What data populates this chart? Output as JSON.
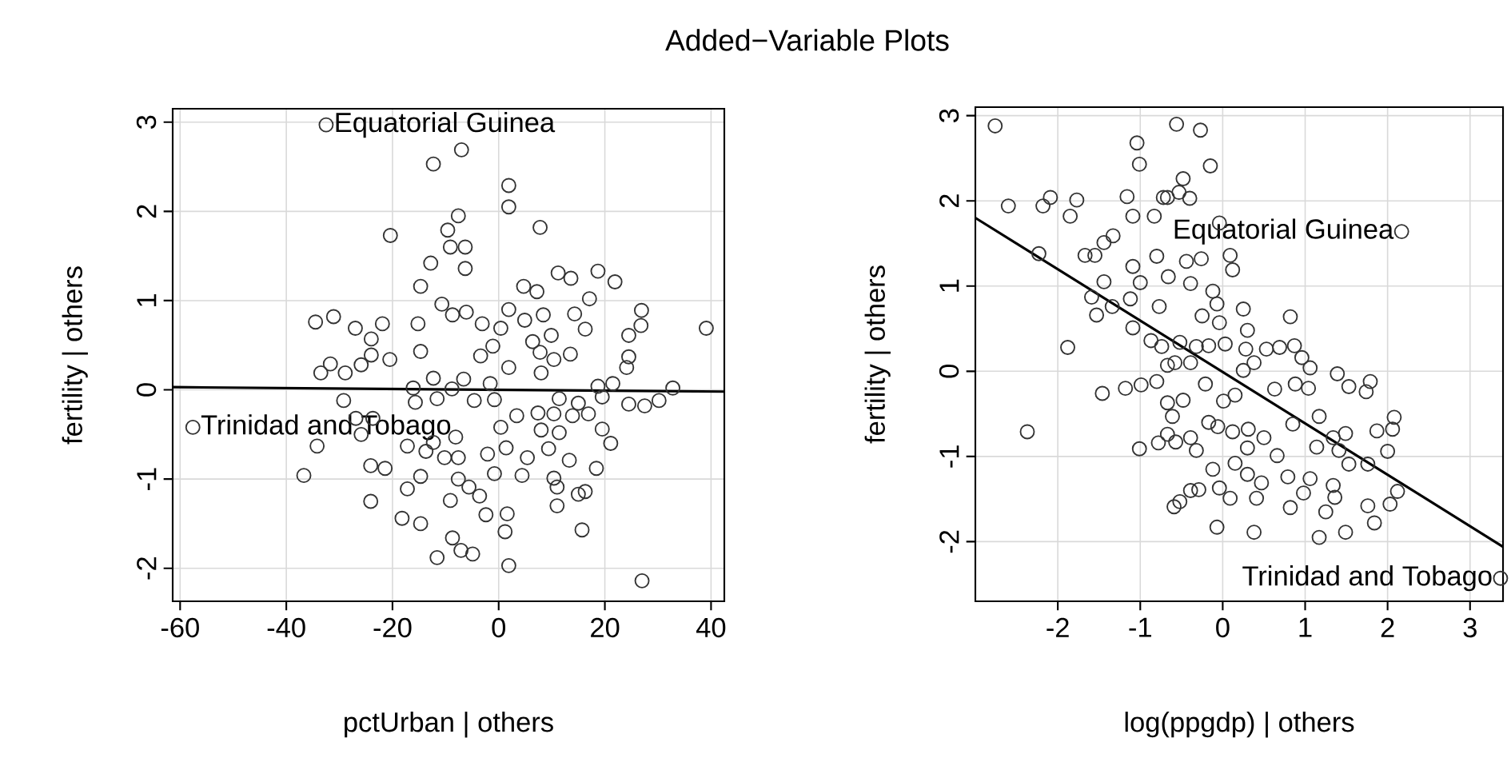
{
  "chart_data": [
    {
      "type": "scatter",
      "title": "Added−Variable Plots",
      "xlabel": "pctUrban | others",
      "ylabel": "fertility  | others",
      "xlim": [
        -61.4,
        42.5
      ],
      "ylim": [
        -2.37,
        3.15
      ],
      "xticks": [
        -60,
        -40,
        -20,
        0,
        20,
        40
      ],
      "yticks": [
        -2,
        -1,
        0,
        1,
        2,
        3
      ],
      "grid": true,
      "annotations": [
        {
          "text": "Equatorial Guinea",
          "x": -32.5,
          "y": 2.97
        },
        {
          "text": "Trinidad and Tobago",
          "x": -57.6,
          "y": -0.42
        }
      ],
      "series": [
        {
          "marker": "circle",
          "color": "#333333",
          "x": [
            -32.5,
            -7.0,
            -12.3,
            1.9,
            1.9,
            -7.6,
            -9.6,
            7.8,
            -20.4,
            -6.3,
            -9.1,
            -12.8,
            -6.3,
            11.2,
            13.6,
            18.7,
            21.9,
            -14.7,
            4.7,
            7.2,
            17.1,
            -10.7,
            26.9,
            -34.5,
            -31.1,
            -27.0,
            -21.9,
            -15.2,
            -8.7,
            -6.1,
            -3.1,
            0.4,
            1.9,
            4.9,
            8.4,
            14.3,
            16.3,
            26.8,
            39.1,
            -24.0,
            24.5,
            9.9,
            6.4,
            -24.0,
            -20.5,
            -14.7,
            -31.7,
            -25.9,
            -33.5,
            -28.9,
            -3.4,
            -1.1,
            1.9,
            7.8,
            10.4,
            13.5,
            24.5,
            24.1,
            -12.3,
            -6.6,
            -16.1,
            -8.8,
            -1.6,
            8.0,
            21.5,
            32.8,
            18.7,
            -29.2,
            -15.7,
            -11.6,
            -4.6,
            -0.8,
            11.4,
            15.0,
            19.5,
            24.5,
            27.5,
            30.2,
            -57.6,
            -26.9,
            -25.9,
            -23.7,
            -34.2,
            3.4,
            7.4,
            10.4,
            13.9,
            16.9,
            0.4,
            8.0,
            11.4,
            19.5,
            21.1,
            -17.2,
            -12.3,
            -8.1,
            -13.7,
            -10.2,
            -7.6,
            -2.1,
            1.4,
            5.4,
            9.4,
            13.3,
            -36.7,
            -24.1,
            -21.4,
            -14.7,
            -0.8,
            4.4,
            10.4,
            18.4,
            -17.2,
            -7.6,
            -5.6,
            -9.1,
            -3.6,
            11.0,
            15.0,
            16.3,
            11.0,
            -24.1,
            -18.2,
            -14.7,
            -2.4,
            1.6,
            15.7,
            -8.7,
            1.2,
            -7.1,
            -4.9,
            -11.6,
            1.9,
            27.0
          ],
          "values": [
            2.97,
            2.69,
            2.53,
            2.29,
            2.05,
            1.95,
            1.79,
            1.82,
            1.73,
            1.6,
            1.6,
            1.42,
            1.36,
            1.31,
            1.25,
            1.33,
            1.21,
            1.16,
            1.16,
            1.1,
            1.02,
            0.96,
            0.89,
            0.76,
            0.82,
            0.69,
            0.74,
            0.74,
            0.84,
            0.87,
            0.74,
            0.69,
            0.9,
            0.78,
            0.84,
            0.85,
            0.68,
            0.72,
            0.69,
            0.57,
            0.61,
            0.61,
            0.54,
            0.39,
            0.34,
            0.43,
            0.29,
            0.28,
            0.19,
            0.19,
            0.38,
            0.49,
            0.25,
            0.42,
            0.34,
            0.4,
            0.37,
            0.25,
            0.13,
            0.12,
            0.02,
            0.01,
            0.07,
            0.19,
            0.07,
            0.02,
            0.04,
            -0.12,
            -0.14,
            -0.1,
            -0.12,
            -0.11,
            -0.1,
            -0.15,
            -0.08,
            -0.16,
            -0.18,
            -0.12,
            -0.42,
            -0.32,
            -0.5,
            -0.32,
            -0.63,
            -0.29,
            -0.26,
            -0.27,
            -0.29,
            -0.27,
            -0.42,
            -0.45,
            -0.48,
            -0.44,
            -0.6,
            -0.63,
            -0.59,
            -0.53,
            -0.69,
            -0.76,
            -0.76,
            -0.72,
            -0.65,
            -0.76,
            -0.66,
            -0.79,
            -0.96,
            -0.85,
            -0.88,
            -0.97,
            -0.94,
            -0.96,
            -0.99,
            -0.88,
            -1.11,
            -1.0,
            -1.09,
            -1.24,
            -1.19,
            -1.09,
            -1.17,
            -1.14,
            -1.3,
            -1.25,
            -1.44,
            -1.5,
            -1.4,
            -1.39,
            -1.57,
            -1.66,
            -1.59,
            -1.8,
            -1.84,
            -1.88,
            -1.97,
            -2.14
          ]
        },
        {
          "type": "line",
          "marker": "none",
          "color": "#000000",
          "line_style": "solid",
          "x": [
            -61.4,
            42.5
          ],
          "values": [
            0.03,
            -0.02
          ]
        }
      ]
    },
    {
      "type": "scatter",
      "xlabel": "log(ppgdp) | others",
      "ylabel": "fertility  | others",
      "xlim": [
        -3.0,
        3.4
      ],
      "ylim": [
        -2.7,
        3.1
      ],
      "xticks": [
        -2,
        -1,
        0,
        1,
        2,
        3
      ],
      "yticks": [
        -2,
        -1,
        0,
        1,
        2,
        3
      ],
      "grid": true,
      "annotations": [
        {
          "text": "Equatorial Guinea",
          "x": 2.17,
          "y": 1.64
        },
        {
          "text": "Trinidad and Tobago",
          "x": 3.37,
          "y": -2.43
        }
      ],
      "series": [
        {
          "marker": "circle",
          "color": "#333333",
          "x": [
            -2.76,
            -0.56,
            -0.27,
            -1.04,
            -1.01,
            -0.15,
            -0.48,
            -0.53,
            -0.4,
            -0.72,
            -0.67,
            -1.16,
            -2.6,
            -2.18,
            -2.09,
            -1.77,
            -1.85,
            -1.09,
            -0.83,
            -0.04,
            2.17,
            -1.33,
            -1.44,
            -2.23,
            -1.67,
            -1.55,
            -0.8,
            -0.44,
            -0.26,
            0.09,
            0.12,
            -1.09,
            -0.66,
            -1.0,
            -0.39,
            -1.44,
            -1.59,
            -1.12,
            -0.77,
            -0.12,
            -0.07,
            -1.53,
            -1.34,
            -1.09,
            -0.25,
            0.25,
            0.82,
            0.3,
            -0.04,
            -1.88,
            -0.87,
            -0.74,
            -0.52,
            -0.32,
            -0.17,
            0.03,
            0.28,
            0.53,
            0.69,
            0.87,
            0.96,
            1.06,
            1.39,
            1.53,
            1.79,
            1.74,
            -0.67,
            -0.58,
            -0.39,
            -0.21,
            0.01,
            0.15,
            0.25,
            0.38,
            0.63,
            0.88,
            1.04,
            1.17,
            -1.46,
            -1.18,
            -0.99,
            -0.8,
            -0.67,
            -0.48,
            -0.61,
            -2.37,
            -1.01,
            -0.78,
            -0.67,
            -0.57,
            -0.39,
            -0.32,
            -0.17,
            -0.06,
            0.12,
            0.31,
            0.5,
            0.3,
            0.66,
            0.85,
            1.14,
            1.34,
            1.49,
            1.41,
            1.53,
            1.76,
            1.87,
            2.08,
            2.06,
            2.0,
            0.15,
            0.3,
            0.47,
            -0.12,
            -0.04,
            -0.29,
            -0.39,
            -0.52,
            -0.59,
            0.09,
            0.41,
            0.79,
            1.06,
            0.82,
            0.98,
            1.25,
            1.34,
            1.36,
            1.76,
            1.84,
            2.03,
            2.12,
            -0.07,
            0.38,
            1.17,
            1.49,
            3.37
          ],
          "values": [
            2.88,
            2.9,
            2.83,
            2.68,
            2.43,
            2.41,
            2.26,
            2.1,
            2.03,
            2.04,
            2.04,
            2.05,
            1.94,
            1.94,
            2.04,
            2.01,
            1.82,
            1.82,
            1.82,
            1.74,
            1.64,
            1.59,
            1.51,
            1.38,
            1.36,
            1.36,
            1.35,
            1.29,
            1.32,
            1.36,
            1.19,
            1.23,
            1.11,
            1.04,
            1.03,
            1.05,
            0.87,
            0.85,
            0.76,
            0.94,
            0.79,
            0.66,
            0.76,
            0.51,
            0.65,
            0.73,
            0.64,
            0.48,
            0.57,
            0.28,
            0.36,
            0.29,
            0.34,
            0.29,
            0.3,
            0.32,
            0.26,
            0.26,
            0.28,
            0.3,
            0.16,
            0.04,
            -0.03,
            -0.18,
            -0.12,
            -0.24,
            0.07,
            0.1,
            0.1,
            -0.15,
            -0.35,
            -0.28,
            0.01,
            0.1,
            -0.21,
            -0.15,
            -0.2,
            -0.53,
            -0.26,
            -0.2,
            -0.16,
            -0.12,
            -0.37,
            -0.34,
            -0.53,
            -0.71,
            -0.91,
            -0.84,
            -0.74,
            -0.83,
            -0.78,
            -0.93,
            -0.6,
            -0.65,
            -0.71,
            -0.68,
            -0.78,
            -0.9,
            -0.99,
            -0.62,
            -0.89,
            -0.78,
            -0.73,
            -0.93,
            -1.09,
            -1.09,
            -0.7,
            -0.54,
            -0.68,
            -0.94,
            -1.08,
            -1.21,
            -1.31,
            -1.15,
            -1.37,
            -1.39,
            -1.4,
            -1.53,
            -1.59,
            -1.49,
            -1.49,
            -1.24,
            -1.26,
            -1.6,
            -1.43,
            -1.65,
            -1.34,
            -1.48,
            -1.58,
            -1.78,
            -1.56,
            -1.41,
            -1.83,
            -1.89,
            -1.95,
            -1.89,
            -2.43
          ]
        },
        {
          "type": "line",
          "marker": "none",
          "color": "#000000",
          "line_style": "solid",
          "x": [
            -3.0,
            3.4
          ],
          "values": [
            1.8,
            -2.06
          ]
        }
      ]
    }
  ]
}
